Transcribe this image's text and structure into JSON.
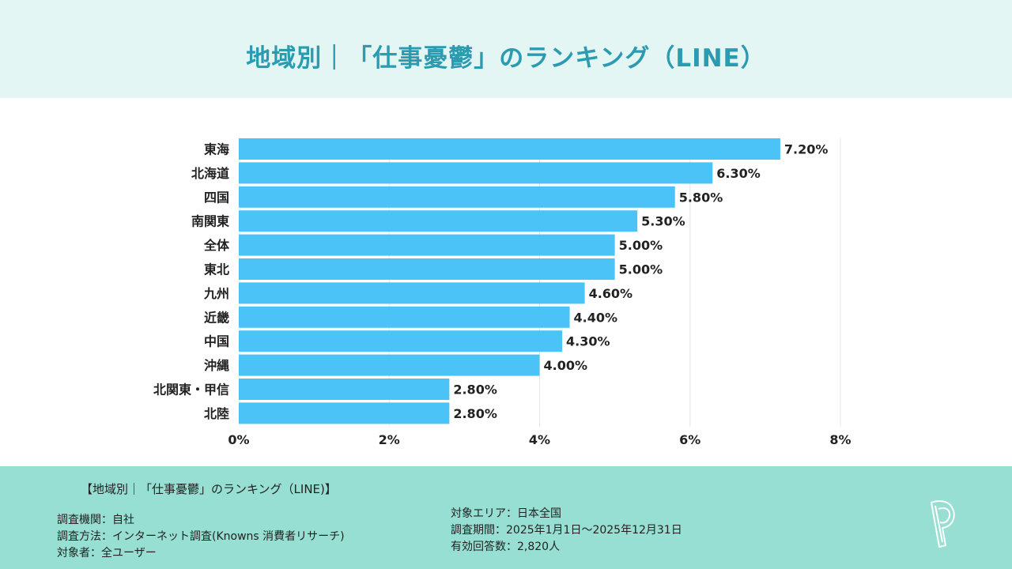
{
  "header": {
    "title": "地域別｜「仕事憂鬱」のランキング（LINE）"
  },
  "colors": {
    "bar": "#4cc3f7",
    "title": "#2a9bb0",
    "header_bg": "#e4f6f4",
    "footer_bg": "#97dfd3",
    "grid": "#e6e6e6"
  },
  "chart_data": {
    "type": "bar",
    "orientation": "horizontal",
    "title": "地域別｜「仕事憂鬱」のランキング（LINE）",
    "xlabel": "",
    "ylabel": "",
    "categories": [
      "東海",
      "北海道",
      "四国",
      "南関東",
      "全体",
      "東北",
      "九州",
      "近畿",
      "中国",
      "沖縄",
      "北関東・甲信",
      "北陸"
    ],
    "values": [
      7.2,
      6.3,
      5.8,
      5.3,
      5.0,
      5.0,
      4.6,
      4.4,
      4.3,
      4.0,
      2.8,
      2.8
    ],
    "value_labels": [
      "7.20%",
      "6.30%",
      "5.80%",
      "5.30%",
      "5.00%",
      "5.00%",
      "4.60%",
      "4.40%",
      "4.30%",
      "4.00%",
      "2.80%",
      "2.80%"
    ],
    "xlim": [
      0,
      8
    ],
    "x_ticks": [
      0,
      2,
      4,
      6,
      8
    ],
    "x_tick_labels": [
      "0%",
      "2%",
      "4%",
      "6%",
      "8%"
    ],
    "grid": "vertical",
    "legend": "none"
  },
  "footer": {
    "title": "【地域別｜「仕事憂鬱」のランキング（LINE)】",
    "left": [
      "調査機関：自社",
      "調査方法：インターネット調査(Knowns 消費者リサーチ)",
      "対象者：全ユーザー"
    ],
    "right": [
      "対象エリア：日本全国",
      "調査期間：2025年1月1日～2025年12月31日",
      "有効回答数：2,820人"
    ]
  },
  "logo": {
    "icon": "p-logo-icon"
  }
}
